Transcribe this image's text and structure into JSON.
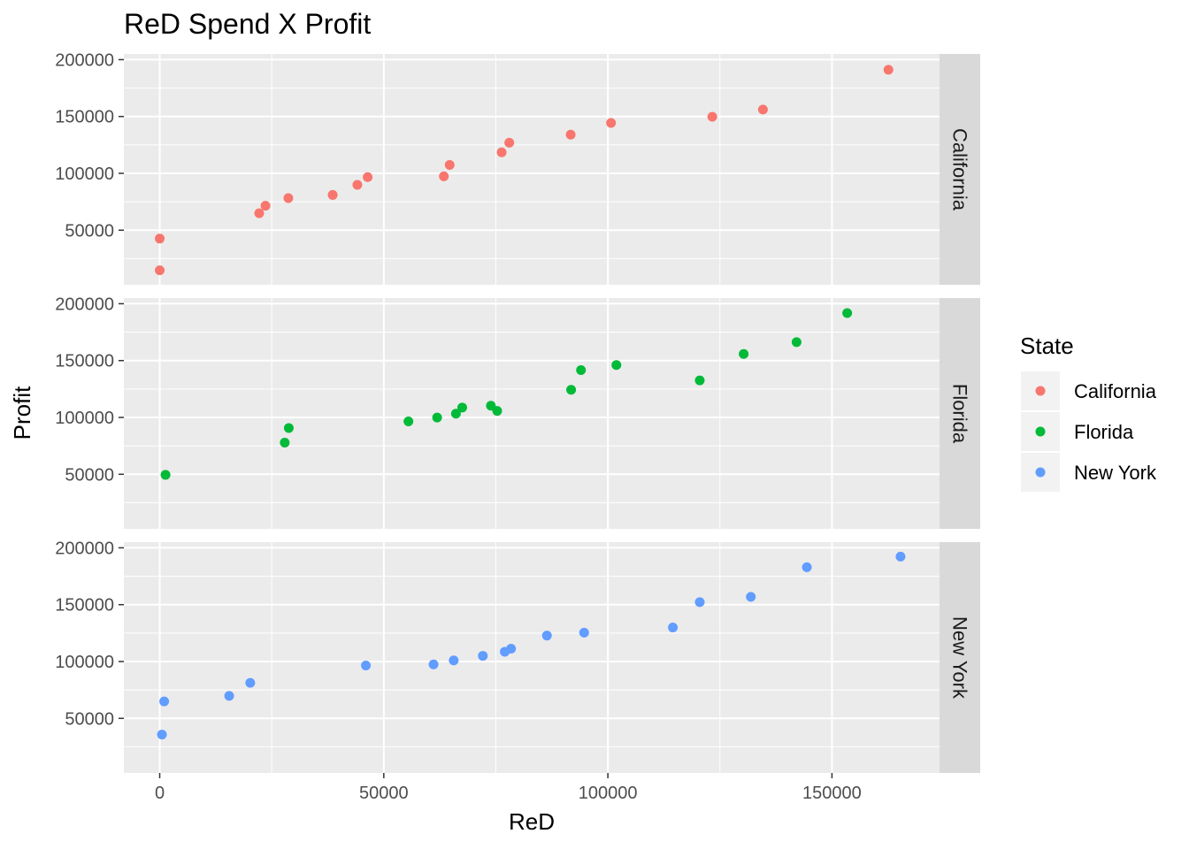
{
  "chart_data": {
    "type": "scatter",
    "title": "ReD Spend X Profit",
    "xlabel": "ReD",
    "ylabel": "Profit",
    "xlim": [
      -8000,
      174000
    ],
    "ylim": [
      2000,
      205000
    ],
    "x_ticks": [
      0,
      50000,
      100000,
      150000
    ],
    "y_ticks": [
      50000,
      100000,
      150000,
      200000
    ],
    "grid": true,
    "legend": {
      "title": "State",
      "position": "right",
      "entries": [
        "California",
        "Florida",
        "New York"
      ]
    },
    "colors": {
      "California": "#F8766D",
      "Florida": "#00BA38",
      "New York": "#619CFF"
    },
    "facets": [
      {
        "label": "California",
        "points": [
          {
            "x": 0,
            "y": 42600
          },
          {
            "x": 0,
            "y": 14700
          },
          {
            "x": 22200,
            "y": 64900
          },
          {
            "x": 23600,
            "y": 71500
          },
          {
            "x": 28700,
            "y": 78200
          },
          {
            "x": 38600,
            "y": 81000
          },
          {
            "x": 44100,
            "y": 89900
          },
          {
            "x": 46400,
            "y": 96700
          },
          {
            "x": 63400,
            "y": 97400
          },
          {
            "x": 64700,
            "y": 107400
          },
          {
            "x": 76300,
            "y": 118500
          },
          {
            "x": 78000,
            "y": 126900
          },
          {
            "x": 91700,
            "y": 134000
          },
          {
            "x": 100700,
            "y": 144300
          },
          {
            "x": 123300,
            "y": 149800
          },
          {
            "x": 134600,
            "y": 156100
          },
          {
            "x": 162600,
            "y": 191100
          }
        ]
      },
      {
        "label": "Florida",
        "points": [
          {
            "x": 1300,
            "y": 49500
          },
          {
            "x": 27900,
            "y": 77800
          },
          {
            "x": 28800,
            "y": 90700
          },
          {
            "x": 55500,
            "y": 96500
          },
          {
            "x": 61900,
            "y": 99900
          },
          {
            "x": 66100,
            "y": 103300
          },
          {
            "x": 67500,
            "y": 108700
          },
          {
            "x": 73900,
            "y": 110300
          },
          {
            "x": 75300,
            "y": 105700
          },
          {
            "x": 91800,
            "y": 124300
          },
          {
            "x": 94000,
            "y": 141600
          },
          {
            "x": 101900,
            "y": 146100
          },
          {
            "x": 120500,
            "y": 132600
          },
          {
            "x": 130300,
            "y": 155800
          },
          {
            "x": 142100,
            "y": 166200
          },
          {
            "x": 153400,
            "y": 191800
          }
        ]
      },
      {
        "label": "New York",
        "points": [
          {
            "x": 500,
            "y": 35700
          },
          {
            "x": 1000,
            "y": 64900
          },
          {
            "x": 15500,
            "y": 69800
          },
          {
            "x": 20200,
            "y": 81200
          },
          {
            "x": 46000,
            "y": 96500
          },
          {
            "x": 61100,
            "y": 97500
          },
          {
            "x": 65600,
            "y": 101000
          },
          {
            "x": 72100,
            "y": 105000
          },
          {
            "x": 77000,
            "y": 108600
          },
          {
            "x": 78400,
            "y": 111300
          },
          {
            "x": 86400,
            "y": 122800
          },
          {
            "x": 94700,
            "y": 125400
          },
          {
            "x": 114500,
            "y": 129900
          },
          {
            "x": 120500,
            "y": 152200
          },
          {
            "x": 131900,
            "y": 156900
          },
          {
            "x": 144400,
            "y": 182900
          },
          {
            "x": 165300,
            "y": 192300
          }
        ]
      }
    ]
  }
}
